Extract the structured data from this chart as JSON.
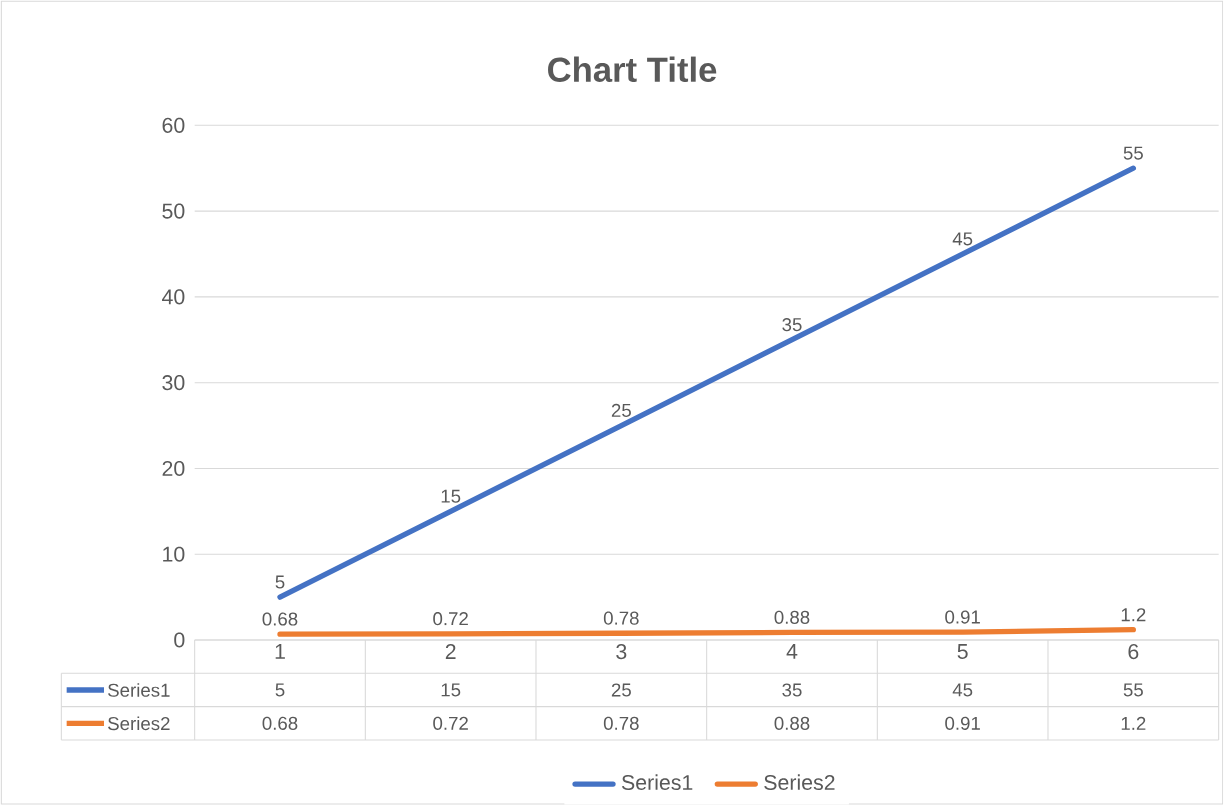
{
  "chart_data": {
    "type": "line",
    "title": "Chart Title",
    "categories": [
      "1",
      "2",
      "3",
      "4",
      "5",
      "6"
    ],
    "series": [
      {
        "name": "Series1",
        "color": "#4472c4",
        "values": [
          5,
          15,
          25,
          35,
          45,
          55
        ],
        "value_labels": [
          "5",
          "15",
          "25",
          "35",
          "45",
          "55"
        ]
      },
      {
        "name": "Series2",
        "color": "#ed7d31",
        "values": [
          0.68,
          0.72,
          0.78,
          0.88,
          0.91,
          1.2
        ],
        "value_labels": [
          "0.68",
          "0.72",
          "0.78",
          "0.88",
          "0.91",
          "1.2"
        ]
      }
    ],
    "ylim": [
      0,
      60
    ],
    "yticks": [
      0,
      10,
      20,
      30,
      40,
      50,
      60
    ],
    "grid": "y",
    "legend": "bottom",
    "data_labels": true
  }
}
